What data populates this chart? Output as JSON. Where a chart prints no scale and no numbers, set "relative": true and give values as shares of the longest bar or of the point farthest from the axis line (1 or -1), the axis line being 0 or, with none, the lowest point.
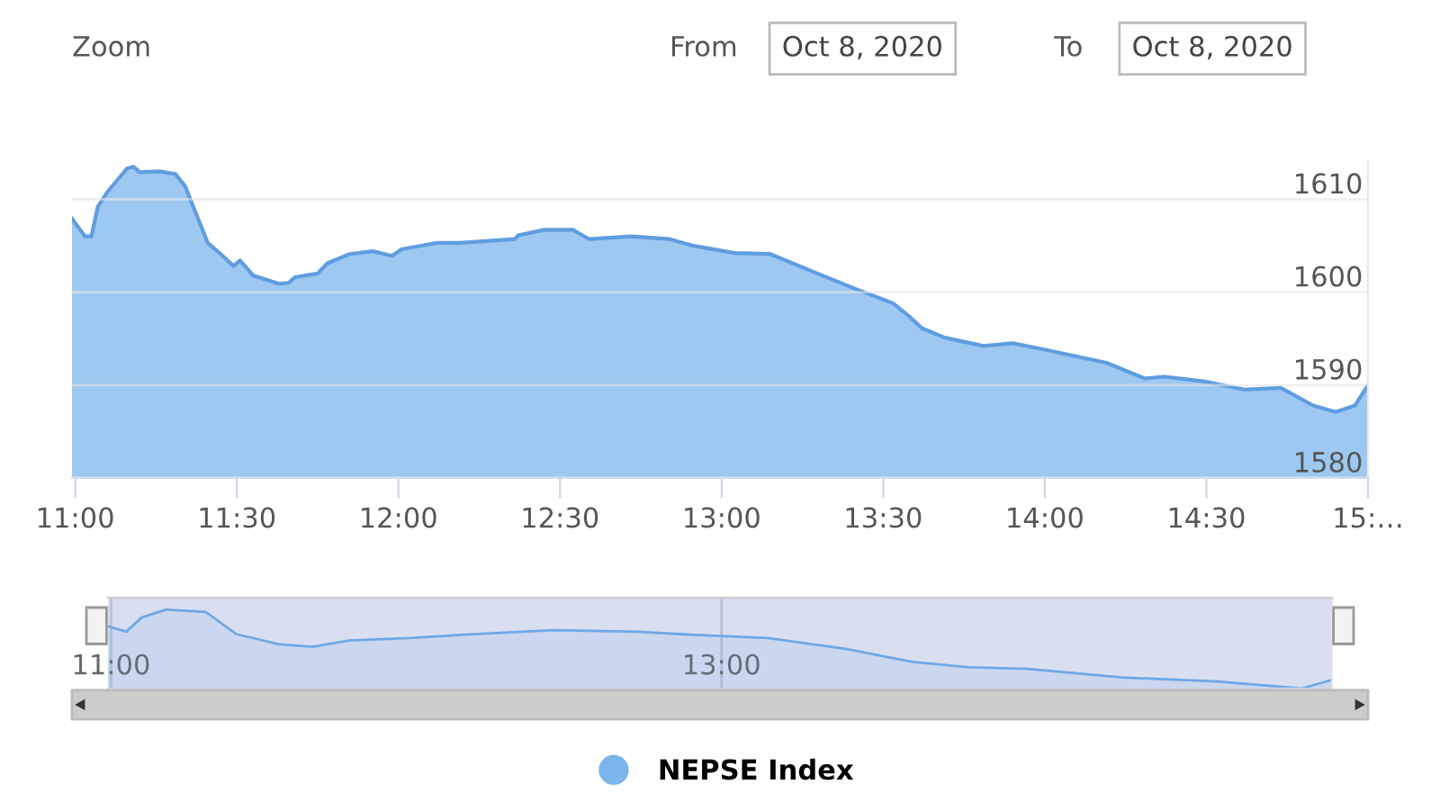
{
  "chart_data": [
    {
      "type": "area",
      "x": [
        10.99,
        11.03,
        11.05,
        11.07,
        11.1,
        11.16,
        11.18,
        11.2,
        11.26,
        11.31,
        11.34,
        11.41,
        11.45,
        11.49,
        11.51,
        11.55,
        11.63,
        11.66,
        11.68,
        11.75,
        11.78,
        11.85,
        11.92,
        11.98,
        12.01,
        12.12,
        12.19,
        12.36,
        12.37,
        12.45,
        12.54,
        12.59,
        12.72,
        12.84,
        12.91,
        13.04,
        13.15,
        13.29,
        13.41,
        13.53,
        13.58,
        13.62,
        13.69,
        13.81,
        13.9,
        14.0,
        14.19,
        14.31,
        14.37,
        14.49,
        14.62,
        14.73,
        14.83,
        14.9,
        14.96,
        15.0
      ],
      "series": [
        {
          "name": "NEPSE Index",
          "color": "#7cb5ec",
          "values": [
            1607.9,
            1606.0,
            1606.0,
            1609.2,
            1610.8,
            1613.3,
            1613.5,
            1612.9,
            1613.0,
            1612.7,
            1611.4,
            1605.3,
            1604.1,
            1602.8,
            1603.4,
            1601.8,
            1600.9,
            1601.0,
            1601.6,
            1602.0,
            1603.1,
            1604.1,
            1604.4,
            1603.9,
            1604.6,
            1605.3,
            1605.3,
            1605.7,
            1606.1,
            1606.7,
            1606.7,
            1605.7,
            1606.0,
            1605.7,
            1605.0,
            1604.2,
            1604.1,
            1602.1,
            1600.4,
            1598.8,
            1597.4,
            1596.1,
            1595.1,
            1594.2,
            1594.5,
            1593.8,
            1592.4,
            1590.7,
            1590.9,
            1590.4,
            1589.5,
            1589.7,
            1587.8,
            1587.1,
            1587.8,
            1590.0
          ]
        }
      ],
      "xlim": [
        10.99,
        15.0
      ],
      "xticks": [
        {
          "value": 11,
          "label": "11:00"
        },
        {
          "value": 11.5,
          "label": "11:30"
        },
        {
          "value": 12,
          "label": "12:00"
        },
        {
          "value": 12.5,
          "label": "12:30"
        },
        {
          "value": 13,
          "label": "13:00"
        },
        {
          "value": 13.5,
          "label": "13:30"
        },
        {
          "value": 14,
          "label": "14:00"
        },
        {
          "value": 14.5,
          "label": "14:30"
        },
        {
          "value": 15,
          "label": "15:…"
        }
      ],
      "ylim": [
        1580,
        1614
      ],
      "yticks": [
        1580,
        1590,
        1600,
        1610
      ],
      "grid": "y",
      "legend": "bottom",
      "annotations": [
        "Zoom",
        "From",
        "Oct 8, 2020",
        "To",
        "Oct 8, 2020"
      ]
    },
    {
      "type": "area",
      "relative": true,
      "x": [
        10.99,
        11.05,
        11.1,
        11.18,
        11.31,
        11.41,
        11.55,
        11.66,
        11.78,
        11.98,
        12.19,
        12.45,
        12.72,
        12.91,
        13.15,
        13.41,
        13.62,
        13.81,
        14.0,
        14.31,
        14.62,
        14.9,
        15.0
      ],
      "series": [
        {
          "color": "#6fa8e6",
          "values": [
            0.79,
            0.72,
            0.9,
            1.0,
            0.97,
            0.69,
            0.56,
            0.53,
            0.61,
            0.64,
            0.69,
            0.74,
            0.72,
            0.68,
            0.64,
            0.5,
            0.34,
            0.27,
            0.25,
            0.14,
            0.09,
            0.0,
            0.11
          ]
        }
      ],
      "xlim": [
        10.99,
        15.0
      ],
      "xticks": [
        {
          "value": 11,
          "label": "11:00"
        },
        {
          "value": 13,
          "label": "13:00"
        }
      ],
      "tick_labels": "x",
      "grid": "x"
    }
  ]
}
